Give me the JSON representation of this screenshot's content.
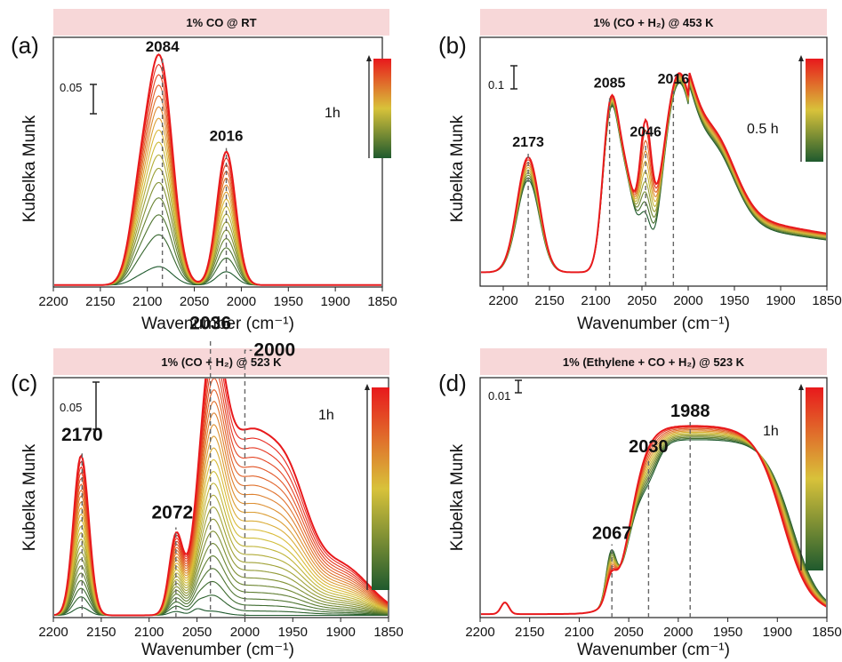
{
  "colors": {
    "early": "#1f5a2e",
    "mid": "#d8c23a",
    "late": "#e8191c",
    "banner": "#f7d7d8",
    "dashed": "#666666"
  },
  "chart_data": [
    {
      "type": "line",
      "panel": "(a)",
      "title": "1% CO @ RT",
      "xlabel": "Wavenumber (cm⁻¹)",
      "ylabel": "Kubelka Munk",
      "xlim": [
        2200,
        1850
      ],
      "xticks": [
        "2200",
        "2150",
        "2100",
        "2050",
        "2000",
        "1950",
        "1900",
        "1850"
      ],
      "scale_bar": "0.05",
      "time_label": "1h",
      "n_curves": 16,
      "peaks": [
        {
          "x": 2084,
          "label": "2084"
        },
        {
          "x": 2016,
          "label": "2016"
        }
      ]
    },
    {
      "type": "line",
      "panel": "(b)",
      "title": "1% (CO + H₂) @ 453 K",
      "xlabel": "Wavenumber (cm⁻¹)",
      "ylabel": "Kubelka Munk",
      "xlim": [
        2225,
        1850
      ],
      "xticks": [
        "2200",
        "2150",
        "2100",
        "2050",
        "2000",
        "1950",
        "1900",
        "1850"
      ],
      "scale_bar": "0.1",
      "time_label": "0.5 h",
      "n_curves": 10,
      "peaks": [
        {
          "x": 2173,
          "label": "2173"
        },
        {
          "x": 2085,
          "label": "2085"
        },
        {
          "x": 2046,
          "label": "2046"
        },
        {
          "x": 2016,
          "label": "2016"
        }
      ]
    },
    {
      "type": "line",
      "panel": "(c)",
      "title": "1% (CO + H₂) @ 523 K",
      "xlabel": "Wavenumber (cm⁻¹)",
      "ylabel": "Kubelka Munk",
      "xlim": [
        2200,
        1850
      ],
      "xticks": [
        "2200",
        "2150",
        "2100",
        "2050",
        "2000",
        "1950",
        "1900",
        "1850"
      ],
      "scale_bar": "0.05",
      "time_label": "1h",
      "n_curves": 24,
      "peaks": [
        {
          "x": 2170,
          "label": "2170"
        },
        {
          "x": 2072,
          "label": "2072"
        },
        {
          "x": 2036,
          "label": "2036"
        },
        {
          "x": 2000,
          "label": "2000"
        }
      ]
    },
    {
      "type": "line",
      "panel": "(d)",
      "title": "1% (Ethylene + CO + H₂) @ 523 K",
      "xlabel": "Wavenumber (cm⁻¹)",
      "ylabel": "Kubelka Munk",
      "xlim": [
        2200,
        1850
      ],
      "xticks": [
        "2200",
        "2150",
        "2100",
        "2050",
        "2000",
        "1950",
        "1900",
        "1850"
      ],
      "scale_bar": "0.01",
      "time_label": "1h",
      "n_curves": 12,
      "peaks": [
        {
          "x": 2067,
          "label": "2067"
        },
        {
          "x": 2030,
          "label": "2030"
        },
        {
          "x": 1988,
          "label": "1988"
        }
      ]
    }
  ]
}
